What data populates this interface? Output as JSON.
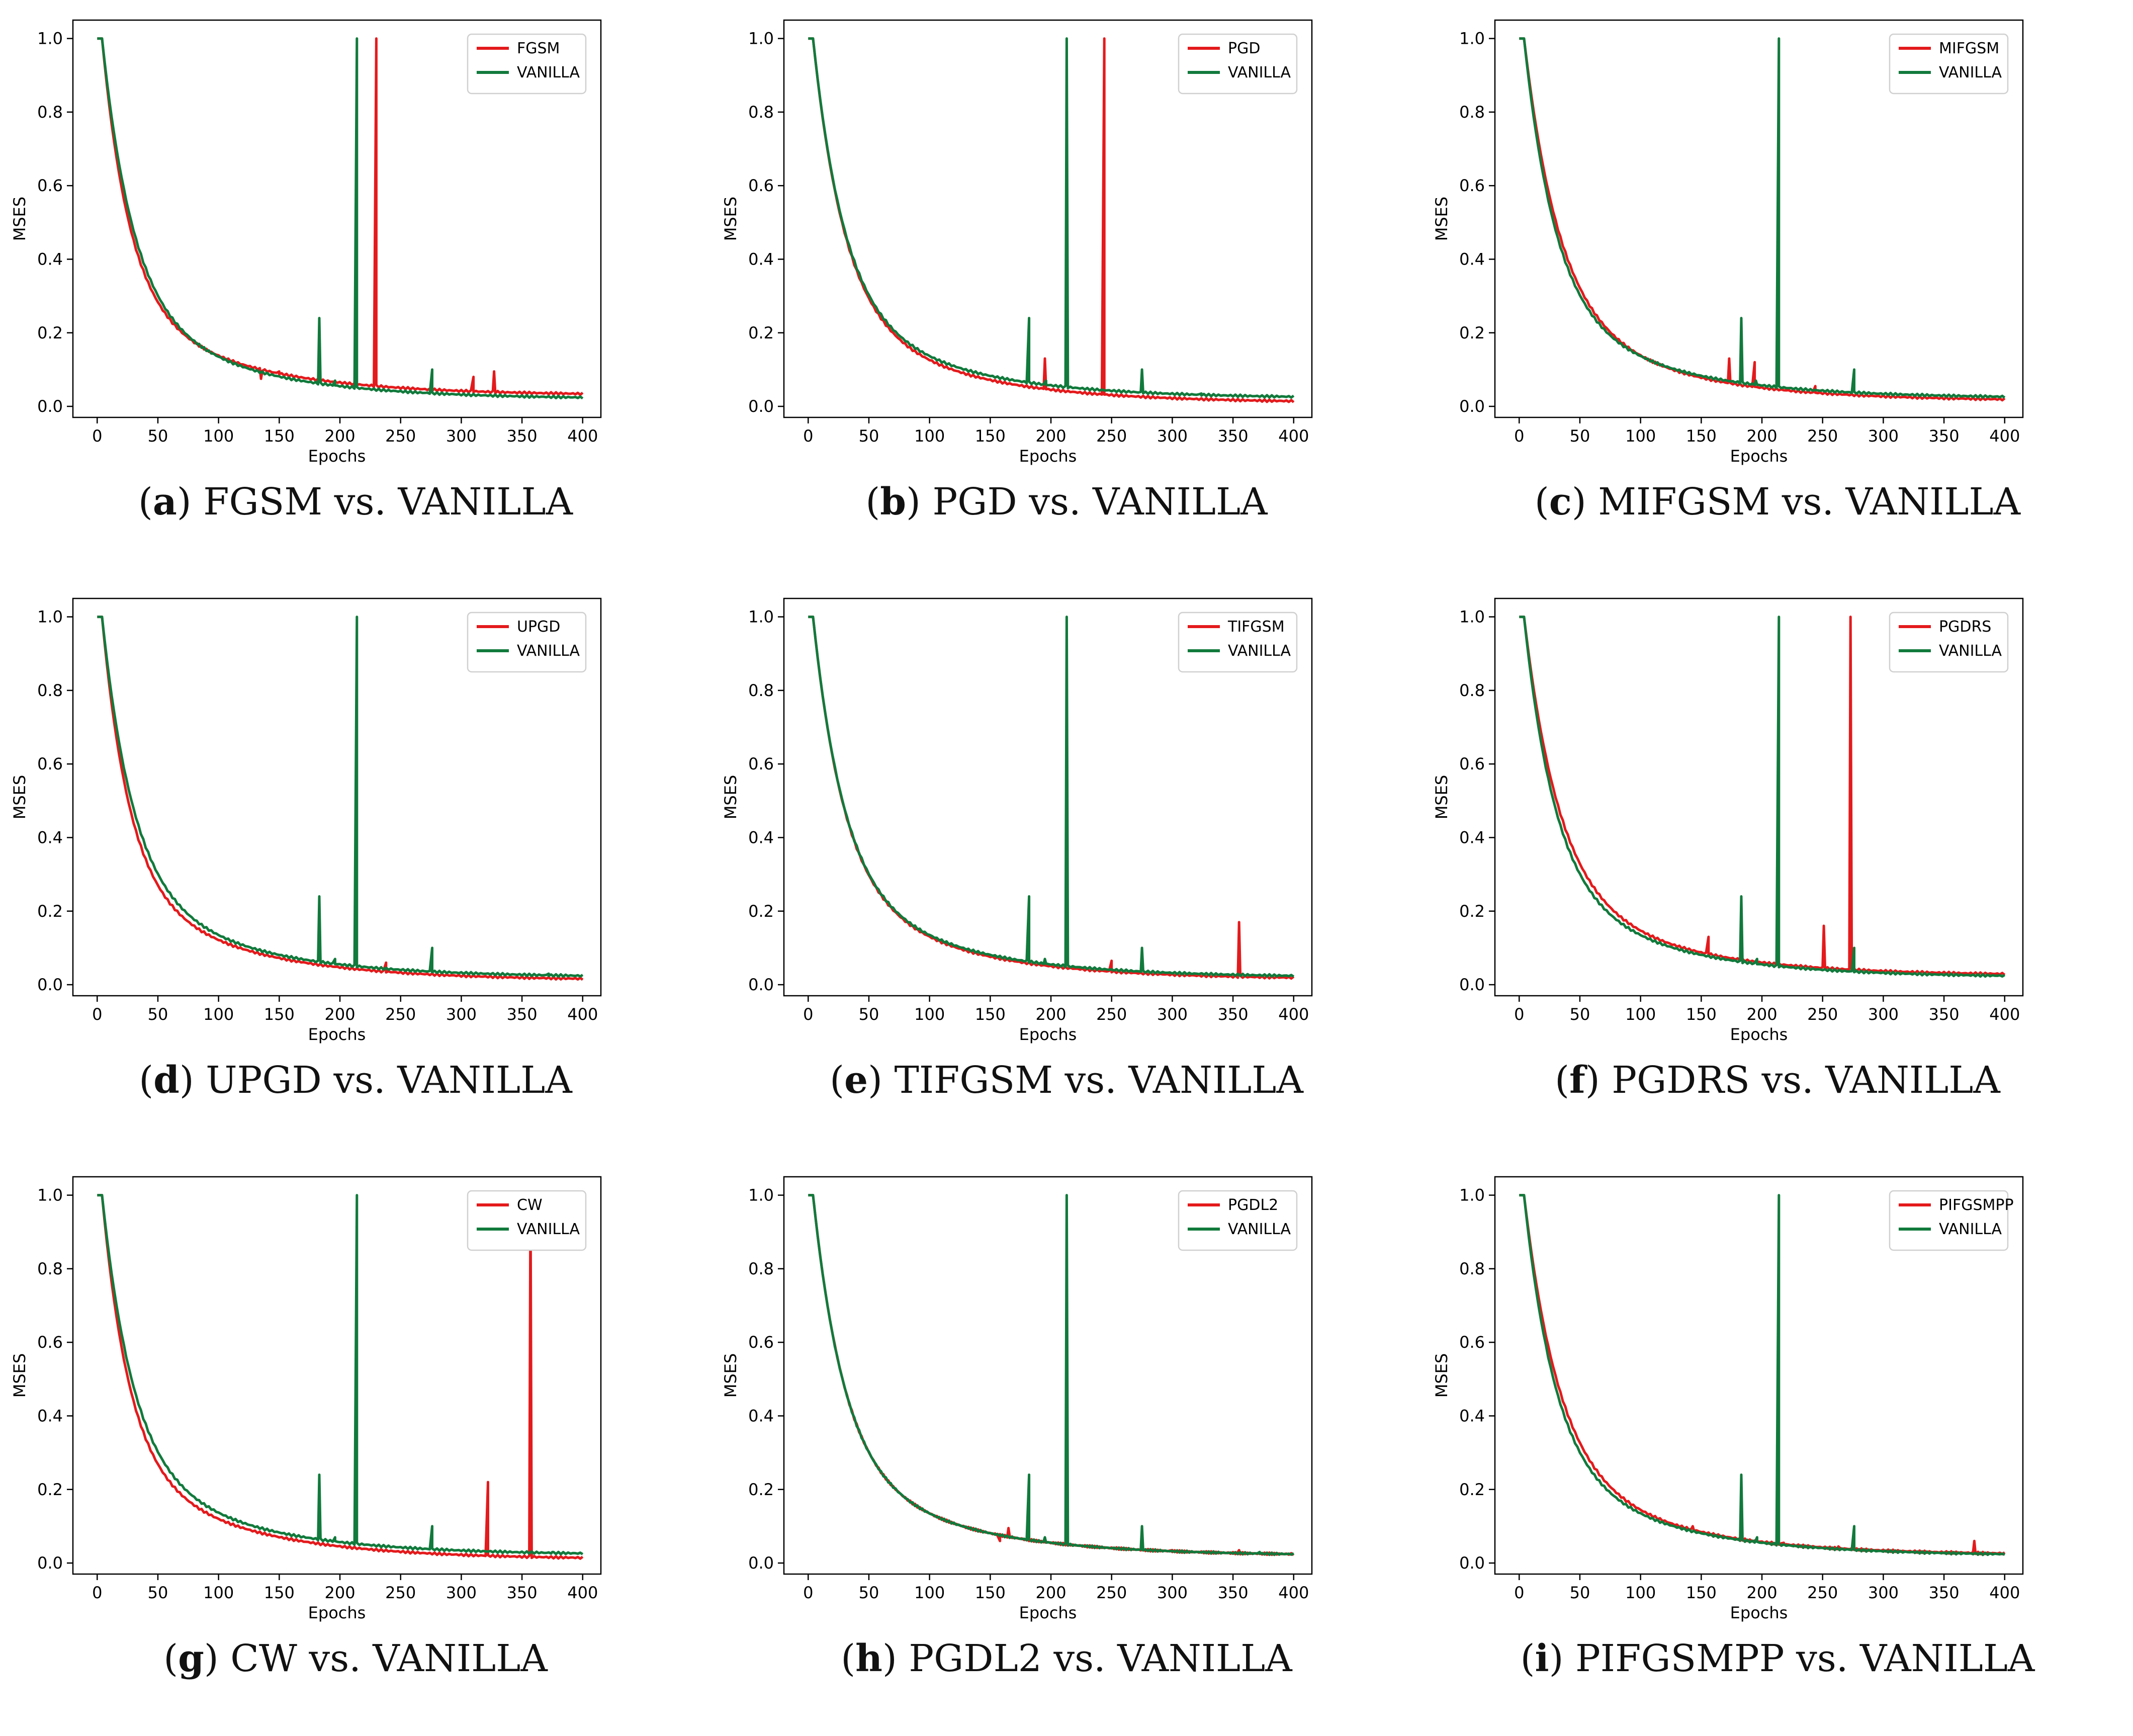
{
  "colors": {
    "attack": "#e41a1c",
    "vanilla": "#117a3c",
    "axis": "#000000"
  },
  "chart_data": [
    {
      "type": "line",
      "panel_letter": "a",
      "caption": "FGSM vs. VANILLA",
      "xlabel": "Epochs",
      "ylabel": "MSES",
      "xlim": [
        -20,
        415
      ],
      "ylim": [
        -0.03,
        1.05
      ],
      "xticks": [
        0,
        50,
        100,
        150,
        200,
        250,
        300,
        350,
        400
      ],
      "yticks": [
        0.0,
        0.2,
        0.4,
        0.6,
        0.8,
        1.0
      ],
      "legend": [
        "FGSM",
        "VANILLA"
      ],
      "legend_position": "top-right",
      "series": [
        {
          "name": "FGSM",
          "key": "attack",
          "final": 0.03,
          "spikes": [
            [
              135,
              0.075
            ],
            [
              150,
              0.095
            ],
            [
              230,
              1.0
            ],
            [
              310,
              0.08
            ],
            [
              327,
              0.095
            ]
          ]
        },
        {
          "name": "VANILLA",
          "key": "vanilla",
          "final": 0.02,
          "spikes": [
            [
              183,
              0.24
            ],
            [
              196,
              0.07
            ],
            [
              214,
              1.0
            ],
            [
              276,
              0.1
            ]
          ]
        }
      ]
    },
    {
      "type": "line",
      "panel_letter": "b",
      "caption": "PGD vs. VANILLA",
      "xlabel": "Epochs",
      "ylabel": "MSES",
      "xlim": [
        -20,
        415
      ],
      "ylim": [
        -0.03,
        1.05
      ],
      "xticks": [
        0,
        50,
        100,
        150,
        200,
        250,
        300,
        350,
        400
      ],
      "yticks": [
        0.0,
        0.2,
        0.4,
        0.6,
        0.8,
        1.0
      ],
      "legend": [
        "PGD",
        "VANILLA"
      ],
      "legend_position": "top-right",
      "series": [
        {
          "name": "PGD",
          "key": "attack",
          "final": 0.01,
          "spikes": [
            [
              195,
              0.13
            ],
            [
              244,
              1.0
            ]
          ]
        },
        {
          "name": "VANILLA",
          "key": "vanilla",
          "final": 0.022,
          "spikes": [
            [
              182,
              0.24
            ],
            [
              196,
              0.07
            ],
            [
              213,
              1.0
            ],
            [
              275,
              0.1
            ],
            [
              324,
              0.035
            ]
          ]
        }
      ]
    },
    {
      "type": "line",
      "panel_letter": "c",
      "caption": "MIFGSM vs. VANILLA",
      "xlabel": "Epochs",
      "ylabel": "MSES",
      "xlim": [
        -20,
        415
      ],
      "ylim": [
        -0.03,
        1.05
      ],
      "xticks": [
        0,
        50,
        100,
        150,
        200,
        250,
        300,
        350,
        400
      ],
      "yticks": [
        0.0,
        0.2,
        0.4,
        0.6,
        0.8,
        1.0
      ],
      "legend": [
        "MIFGSM",
        "VANILLA"
      ],
      "legend_position": "top-right",
      "series": [
        {
          "name": "MIFGSM",
          "key": "attack",
          "final": 0.015,
          "spikes": [
            [
              173,
              0.13
            ],
            [
              194,
              0.12
            ],
            [
              244,
              0.055
            ]
          ]
        },
        {
          "name": "VANILLA",
          "key": "vanilla",
          "final": 0.022,
          "spikes": [
            [
              183,
              0.24
            ],
            [
              195,
              0.07
            ],
            [
              214,
              1.0
            ],
            [
              276,
              0.1
            ]
          ]
        }
      ]
    },
    {
      "type": "line",
      "panel_letter": "d",
      "caption": "UPGD vs. VANILLA",
      "xlabel": "Epochs",
      "ylabel": "MSES",
      "xlim": [
        -20,
        415
      ],
      "ylim": [
        -0.03,
        1.05
      ],
      "xticks": [
        0,
        50,
        100,
        150,
        200,
        250,
        300,
        350,
        400
      ],
      "yticks": [
        0.0,
        0.2,
        0.4,
        0.6,
        0.8,
        1.0
      ],
      "legend": [
        "UPGD",
        "VANILLA"
      ],
      "legend_position": "top-right",
      "series": [
        {
          "name": "UPGD",
          "key": "attack",
          "final": 0.012,
          "spikes": [
            [
              238,
              0.06
            ]
          ]
        },
        {
          "name": "VANILLA",
          "key": "vanilla",
          "final": 0.02,
          "spikes": [
            [
              183,
              0.24
            ],
            [
              196,
              0.07
            ],
            [
              214,
              1.0
            ],
            [
              276,
              0.1
            ],
            [
              325,
              0.03
            ],
            [
              372,
              0.03
            ]
          ]
        }
      ]
    },
    {
      "type": "line",
      "panel_letter": "e",
      "caption": "TIFGSM vs. VANILLA",
      "xlabel": "Epochs",
      "ylabel": "MSES",
      "xlim": [
        -20,
        415
      ],
      "ylim": [
        -0.03,
        1.05
      ],
      "xticks": [
        0,
        50,
        100,
        150,
        200,
        250,
        300,
        350,
        400
      ],
      "yticks": [
        0.0,
        0.2,
        0.4,
        0.6,
        0.8,
        1.0
      ],
      "legend": [
        "TIFGSM",
        "VANILLA"
      ],
      "legend_position": "top-right",
      "series": [
        {
          "name": "TIFGSM",
          "key": "attack",
          "final": 0.015,
          "spikes": [
            [
              250,
              0.065
            ],
            [
              355,
              0.17
            ]
          ]
        },
        {
          "name": "VANILLA",
          "key": "vanilla",
          "final": 0.02,
          "spikes": [
            [
              182,
              0.24
            ],
            [
              195,
              0.07
            ],
            [
              213,
              1.0
            ],
            [
              275,
              0.1
            ],
            [
              325,
              0.03
            ]
          ]
        }
      ]
    },
    {
      "type": "line",
      "panel_letter": "f",
      "caption": "PGDRS vs. VANILLA",
      "xlabel": "Epochs",
      "ylabel": "MSES",
      "xlim": [
        -20,
        415
      ],
      "ylim": [
        -0.03,
        1.05
      ],
      "xticks": [
        0,
        50,
        100,
        150,
        200,
        250,
        300,
        350,
        400
      ],
      "yticks": [
        0.0,
        0.2,
        0.4,
        0.6,
        0.8,
        1.0
      ],
      "legend": [
        "PGDRS",
        "VANILLA"
      ],
      "legend_position": "top-right",
      "series": [
        {
          "name": "PGDRS",
          "key": "attack",
          "final": 0.025,
          "spikes": [
            [
              156,
              0.13
            ],
            [
              251,
              0.16
            ],
            [
              273,
              1.0
            ]
          ]
        },
        {
          "name": "VANILLA",
          "key": "vanilla",
          "final": 0.02,
          "spikes": [
            [
              183,
              0.24
            ],
            [
              196,
              0.07
            ],
            [
              214,
              1.0
            ],
            [
              276,
              0.1
            ]
          ]
        }
      ]
    },
    {
      "type": "line",
      "panel_letter": "g",
      "caption": "CW vs. VANILLA",
      "xlabel": "Epochs",
      "ylabel": "MSES",
      "xlim": [
        -20,
        415
      ],
      "ylim": [
        -0.03,
        1.05
      ],
      "xticks": [
        0,
        50,
        100,
        150,
        200,
        250,
        300,
        350,
        400
      ],
      "yticks": [
        0.0,
        0.2,
        0.4,
        0.6,
        0.8,
        1.0
      ],
      "legend": [
        "CW",
        "VANILLA"
      ],
      "legend_position": "top-right",
      "series": [
        {
          "name": "CW",
          "key": "attack",
          "final": 0.01,
          "spikes": [
            [
              322,
              0.22
            ],
            [
              357,
              1.0
            ]
          ]
        },
        {
          "name": "VANILLA",
          "key": "vanilla",
          "final": 0.022,
          "spikes": [
            [
              183,
              0.24
            ],
            [
              196,
              0.07
            ],
            [
              214,
              1.0
            ],
            [
              276,
              0.1
            ],
            [
              375,
              0.03
            ]
          ]
        }
      ]
    },
    {
      "type": "line",
      "panel_letter": "h",
      "caption": "PGDL2 vs. VANILLA",
      "xlabel": "Epochs",
      "ylabel": "MSES",
      "xlim": [
        -20,
        415
      ],
      "ylim": [
        -0.03,
        1.05
      ],
      "xticks": [
        0,
        50,
        100,
        150,
        200,
        250,
        300,
        350,
        400
      ],
      "yticks": [
        0.0,
        0.2,
        0.4,
        0.6,
        0.8,
        1.0
      ],
      "legend": [
        "PGDL2",
        "VANILLA"
      ],
      "legend_position": "top-right",
      "series": [
        {
          "name": "PGDL2",
          "key": "attack",
          "final": 0.02,
          "spikes": [
            [
              158,
              0.06
            ],
            [
              165,
              0.095
            ],
            [
              300,
              0.035
            ],
            [
              355,
              0.035
            ]
          ]
        },
        {
          "name": "VANILLA",
          "key": "vanilla",
          "final": 0.02,
          "spikes": [
            [
              182,
              0.24
            ],
            [
              195,
              0.07
            ],
            [
              213,
              1.0
            ],
            [
              275,
              0.1
            ],
            [
              325,
              0.03
            ],
            [
              372,
              0.03
            ]
          ]
        }
      ]
    },
    {
      "type": "line",
      "panel_letter": "i",
      "caption": "PIFGSMPP vs. VANILLA",
      "xlabel": "Epochs",
      "ylabel": "MSES",
      "xlim": [
        -20,
        415
      ],
      "ylim": [
        -0.03,
        1.05
      ],
      "xticks": [
        0,
        50,
        100,
        150,
        200,
        250,
        300,
        350,
        400
      ],
      "yticks": [
        0.0,
        0.2,
        0.4,
        0.6,
        0.8,
        1.0
      ],
      "legend": [
        "PIFGSMPP",
        "VANILLA"
      ],
      "legend_position": "top-right",
      "series": [
        {
          "name": "PIFGSMPP",
          "key": "attack",
          "final": 0.022,
          "spikes": [
            [
              143,
              0.1
            ],
            [
              218,
              0.055
            ],
            [
              263,
              0.045
            ],
            [
              375,
              0.06
            ]
          ]
        },
        {
          "name": "VANILLA",
          "key": "vanilla",
          "final": 0.02,
          "spikes": [
            [
              183,
              0.24
            ],
            [
              196,
              0.07
            ],
            [
              214,
              1.0
            ],
            [
              276,
              0.1
            ],
            [
              325,
              0.03
            ]
          ]
        }
      ]
    }
  ]
}
